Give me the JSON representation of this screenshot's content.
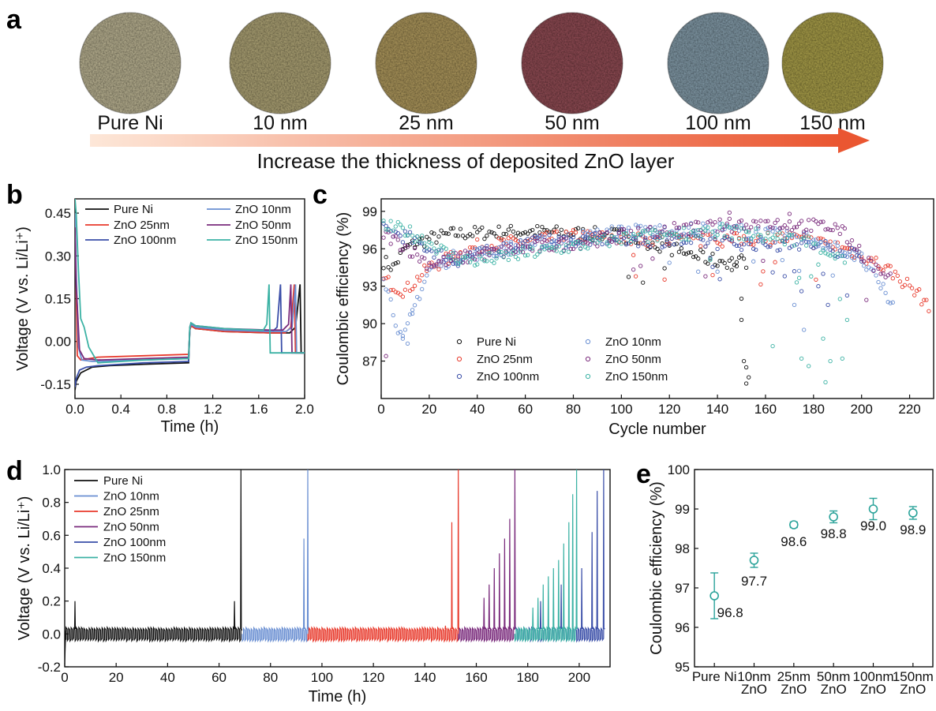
{
  "panels": {
    "a": "a",
    "b": "b",
    "c": "c",
    "d": "d",
    "e": "e"
  },
  "panel_a": {
    "samples": [
      {
        "label": "Pure Ni",
        "color": "#b3ac8d"
      },
      {
        "label": "10 nm",
        "color": "#a89e72"
      },
      {
        "label": "25 nm",
        "color": "#a8935a"
      },
      {
        "label": "50 nm",
        "color": "#8c4a52"
      },
      {
        "label": "100 nm",
        "color": "#7f96a3"
      },
      {
        "label": "150 nm",
        "color": "#a49a48"
      }
    ],
    "arrow_text": "Increase the thickness of deposited ZnO layer",
    "arrow_colors": [
      "#fde7d8",
      "#ea5631"
    ]
  },
  "chart_data": [
    {
      "id": "b",
      "type": "line",
      "xlabel": "Time (h)",
      "ylabel": "Voltage (V vs. Li/Li⁺)",
      "xlim": [
        0,
        2.0
      ],
      "ylim": [
        -0.2,
        0.5
      ],
      "xticks": [
        "0.0",
        "0.4",
        "0.8",
        "1.2",
        "1.6",
        "2.0"
      ],
      "yticks": [
        "-0.15",
        "0.00",
        "0.15",
        "0.30",
        "0.45"
      ],
      "legend_position": "top",
      "series": [
        {
          "name": "Pure Ni",
          "color": "#111111",
          "x": [
            0,
            0.01,
            0.05,
            0.15,
            0.3,
            0.6,
            0.99,
            1.0,
            1.01,
            1.05,
            1.3,
            1.7,
            1.87,
            1.92,
            1.96,
            1.97,
            2.0
          ],
          "y": [
            -0.17,
            -0.14,
            -0.11,
            -0.09,
            -0.085,
            -0.08,
            -0.075,
            0.04,
            0.055,
            0.045,
            0.035,
            0.03,
            0.03,
            0.05,
            0.2,
            -0.04,
            -0.04
          ]
        },
        {
          "name": "ZnO 25nm",
          "color": "#e83a2c",
          "x": [
            0,
            0.01,
            0.02,
            0.05,
            0.2,
            0.6,
            0.99,
            1.0,
            1.01,
            1.05,
            1.3,
            1.7,
            1.83,
            1.88,
            1.91,
            1.92,
            2.0
          ],
          "y": [
            0.45,
            0.2,
            -0.05,
            -0.065,
            -0.055,
            -0.05,
            -0.045,
            0.04,
            0.055,
            0.045,
            0.035,
            0.03,
            0.03,
            0.05,
            0.2,
            -0.04,
            -0.04
          ]
        },
        {
          "name": "ZnO 100nm",
          "color": "#3a4ea8",
          "x": [
            0,
            0.01,
            0.04,
            0.1,
            0.2,
            0.6,
            0.99,
            1.0,
            1.01,
            1.05,
            1.3,
            1.7,
            1.72,
            1.76,
            1.79,
            1.8,
            2.0
          ],
          "y": [
            -0.16,
            -0.13,
            -0.1,
            -0.09,
            -0.085,
            -0.075,
            -0.07,
            0.045,
            0.06,
            0.05,
            0.04,
            0.035,
            0.035,
            0.05,
            0.2,
            -0.04,
            -0.04
          ]
        },
        {
          "name": "ZnO 10nm",
          "color": "#6a8fd2",
          "x": [
            0,
            0.01,
            0.03,
            0.06,
            0.15,
            0.6,
            0.99,
            1.0,
            1.01,
            1.05,
            1.3,
            1.7,
            1.84,
            1.89,
            1.92,
            1.93,
            2.0
          ],
          "y": [
            0.45,
            0.25,
            -0.02,
            -0.065,
            -0.07,
            -0.065,
            -0.06,
            0.045,
            0.06,
            0.05,
            0.04,
            0.035,
            0.035,
            0.05,
            0.2,
            -0.04,
            -0.04
          ]
        },
        {
          "name": "ZnO 50nm",
          "color": "#7a2b7c",
          "x": [
            0,
            0.01,
            0.04,
            0.08,
            0.2,
            0.6,
            0.99,
            1.0,
            1.01,
            1.05,
            1.3,
            1.7,
            1.81,
            1.86,
            1.88,
            1.89,
            2.0
          ],
          "y": [
            0.4,
            0.2,
            -0.03,
            -0.06,
            -0.065,
            -0.06,
            -0.055,
            0.05,
            0.065,
            0.055,
            0.045,
            0.04,
            0.04,
            0.06,
            0.2,
            -0.04,
            -0.04
          ]
        },
        {
          "name": "ZnO 150nm",
          "color": "#3bb2a4",
          "x": [
            0,
            0.01,
            0.03,
            0.05,
            0.08,
            0.12,
            0.2,
            0.6,
            0.99,
            1.0,
            1.01,
            1.05,
            1.3,
            1.6,
            1.64,
            1.67,
            1.69,
            1.7,
            2.0
          ],
          "y": [
            0.5,
            0.45,
            0.25,
            0.08,
            0.05,
            -0.02,
            -0.075,
            -0.065,
            -0.06,
            0.05,
            0.065,
            0.055,
            0.045,
            0.04,
            0.04,
            0.06,
            0.2,
            -0.04,
            -0.04
          ]
        }
      ]
    },
    {
      "id": "c",
      "type": "scatter",
      "xlabel": "Cycle number",
      "ylabel": "Coulombic efficiency (%)",
      "xlim": [
        0,
        230
      ],
      "ylim": [
        84,
        100
      ],
      "xticks": [
        "0",
        "20",
        "40",
        "60",
        "80",
        "100",
        "120",
        "140",
        "160",
        "180",
        "200",
        "220"
      ],
      "yticks": [
        "87",
        "90",
        "93",
        "96",
        "99"
      ],
      "legend_position": "bottom",
      "series": [
        {
          "name": "Pure Ni",
          "color": "#111111",
          "anchors_x": [
            1,
            5,
            10,
            15,
            20,
            30,
            60,
            100,
            140
          ],
          "anchors_y": [
            95,
            94.5,
            96,
            96.5,
            96.8,
            97.2,
            97.4,
            97.1,
            95
          ],
          "n_start": 1,
          "n_end": 152,
          "outliers": [
            [
              146,
              94.3
            ],
            [
              148,
              94.6
            ],
            [
              150,
              92
            ],
            [
              150,
              90.3
            ],
            [
              151,
              87
            ],
            [
              152,
              86.5
            ],
            [
              153,
              85.7
            ],
            [
              152,
              85.2
            ]
          ]
        },
        {
          "name": "ZnO 25nm",
          "color": "#e83a2c",
          "anchors_x": [
            1,
            10,
            20,
            40,
            80,
            130,
            170,
            190,
            200,
            210,
            220,
            228
          ],
          "anchors_y": [
            93.5,
            92.6,
            94.5,
            96.2,
            97,
            96.6,
            96.9,
            96.2,
            95.5,
            94.5,
            93,
            91.5
          ],
          "n_start": 1,
          "n_end": 228,
          "outliers": []
        },
        {
          "name": "ZnO 100nm",
          "color": "#3a4ea8",
          "anchors_x": [
            1,
            10,
            20,
            30,
            60,
            100,
            140,
            180,
            200
          ],
          "anchors_y": [
            97.5,
            97,
            96,
            95,
            96.5,
            96.8,
            96.5,
            96.3,
            95.5
          ],
          "n_start": 1,
          "n_end": 200,
          "outliers": [
            [
              168,
              93.8
            ],
            [
              175,
              92.6
            ],
            [
              182,
              93
            ],
            [
              186,
              91.5
            ]
          ]
        },
        {
          "name": "ZnO 10nm",
          "color": "#6a8fd2",
          "anchors_x": [
            1,
            5,
            9,
            15,
            20,
            30,
            60,
            100,
            140,
            180,
            200,
            213
          ],
          "anchors_y": [
            94,
            91,
            88.5,
            92,
            94.3,
            95.3,
            96.3,
            97.4,
            97.6,
            96.8,
            95.2,
            91.5
          ],
          "n_start": 1,
          "n_end": 213,
          "outliers": [
            [
              9,
              88.8
            ],
            [
              11,
              88.4
            ],
            [
              13,
              90.8
            ],
            [
              172,
              91.5
            ],
            [
              176,
              89.5
            ]
          ]
        },
        {
          "name": "ZnO 50nm",
          "color": "#7a2b7c",
          "anchors_x": [
            1,
            10,
            20,
            40,
            80,
            120,
            160,
            190,
            200,
            210
          ],
          "anchors_y": [
            97.2,
            96.2,
            94.8,
            95.5,
            96.5,
            97.5,
            98.1,
            97.7,
            95.7,
            93.5
          ],
          "n_start": 1,
          "n_end": 212,
          "outliers": [
            [
              2,
              87.4
            ],
            [
              145,
              98.9
            ],
            [
              170,
              98.8
            ]
          ]
        },
        {
          "name": "ZnO 150nm",
          "color": "#3bb2a4",
          "anchors_x": [
            1,
            10,
            20,
            30,
            40,
            60,
            100,
            140,
            180,
            193
          ],
          "anchors_y": [
            97.8,
            97.5,
            96.5,
            95.3,
            95,
            95.6,
            96.8,
            97.5,
            96.5,
            95
          ],
          "n_start": 1,
          "n_end": 193,
          "outliers": [
            [
              163,
              88.2
            ],
            [
              175,
              87.2
            ],
            [
              178,
              86.6
            ],
            [
              184,
              88.8
            ],
            [
              185,
              85.3
            ],
            [
              187,
              87
            ],
            [
              192,
              87.2
            ],
            [
              194,
              90.3
            ]
          ]
        }
      ]
    },
    {
      "id": "d",
      "type": "line",
      "xlabel": "Time (h)",
      "ylabel": "Voltage (V vs. Li/Li⁺)",
      "xlim": [
        0,
        212
      ],
      "ylim": [
        -0.2,
        1.0
      ],
      "xticks": [
        "0",
        "20",
        "40",
        "60",
        "80",
        "100",
        "120",
        "140",
        "160",
        "180",
        "200"
      ],
      "yticks": [
        "-0.2",
        "0.0",
        "0.2",
        "0.4",
        "0.6",
        "0.8",
        "1.0"
      ],
      "legend_position": "top-left",
      "series": [
        {
          "name": "Pure Ni",
          "color": "#111111",
          "t_start": 0,
          "t_end": 69,
          "spikes": [
            [
              4,
              0.2
            ],
            [
              66,
              0.2
            ],
            [
              68.5,
              1.0
            ]
          ]
        },
        {
          "name": "ZnO 10nm",
          "color": "#6a8fd2",
          "t_start": 69,
          "t_end": 94.5,
          "spikes": [
            [
              93,
              0.58
            ],
            [
              94.5,
              1.0
            ]
          ]
        },
        {
          "name": "ZnO 25nm",
          "color": "#e83a2c",
          "t_start": 94.5,
          "t_end": 153,
          "spikes": [
            [
              148,
              0.05
            ],
            [
              150.5,
              0.68
            ],
            [
              153,
              1.0
            ]
          ]
        },
        {
          "name": "ZnO 50nm",
          "color": "#7a2b7c",
          "t_start": 153,
          "t_end": 175,
          "spikes": [
            [
              163,
              0.22
            ],
            [
              165,
              0.3
            ],
            [
              167,
              0.4
            ],
            [
              169,
              0.49
            ],
            [
              171,
              0.58
            ],
            [
              173,
              0.7
            ],
            [
              175,
              1.0
            ]
          ]
        },
        {
          "name": "ZnO 100nm",
          "color": "#3a4ea8",
          "t_start": 175,
          "t_end": 210,
          "spikes": [
            [
              185,
              0.2
            ],
            [
              193,
              0.3
            ],
            [
              201,
              0.4
            ],
            [
              205,
              0.62
            ],
            [
              207,
              0.87
            ],
            [
              209.5,
              1.0
            ]
          ]
        },
        {
          "name": "ZnO 150nm",
          "color": "#3bb2a4",
          "t_start": 175,
          "t_end": 199,
          "spikes": [
            [
              182,
              0.16
            ],
            [
              184,
              0.22
            ],
            [
              186,
              0.3
            ],
            [
              188,
              0.35
            ],
            [
              190,
              0.4
            ],
            [
              192,
              0.45
            ],
            [
              194,
              0.55
            ],
            [
              196,
              0.68
            ],
            [
              197.5,
              0.85
            ],
            [
              199,
              1.0
            ]
          ]
        }
      ]
    },
    {
      "id": "e",
      "type": "scatter",
      "xlabel": "",
      "ylabel": "Coulombic efficiency (%)",
      "ylim": [
        95,
        100
      ],
      "yticks": [
        "95",
        "96",
        "97",
        "98",
        "99",
        "100"
      ],
      "categories": [
        [
          "Pure Ni"
        ],
        [
          "10nm",
          "ZnO"
        ],
        [
          "25nm",
          "ZnO"
        ],
        [
          "50nm",
          "ZnO"
        ],
        [
          "100nm",
          "ZnO"
        ],
        [
          "150nm",
          "ZnO"
        ]
      ],
      "values": [
        96.8,
        97.7,
        98.6,
        98.8,
        99.0,
        98.9
      ],
      "value_labels": [
        "96.8",
        "97.7",
        "98.6",
        "98.8",
        "99.0",
        "98.9"
      ],
      "errors": [
        0.58,
        0.18,
        0.07,
        0.15,
        0.27,
        0.16
      ],
      "color": "#2ba39a"
    }
  ]
}
